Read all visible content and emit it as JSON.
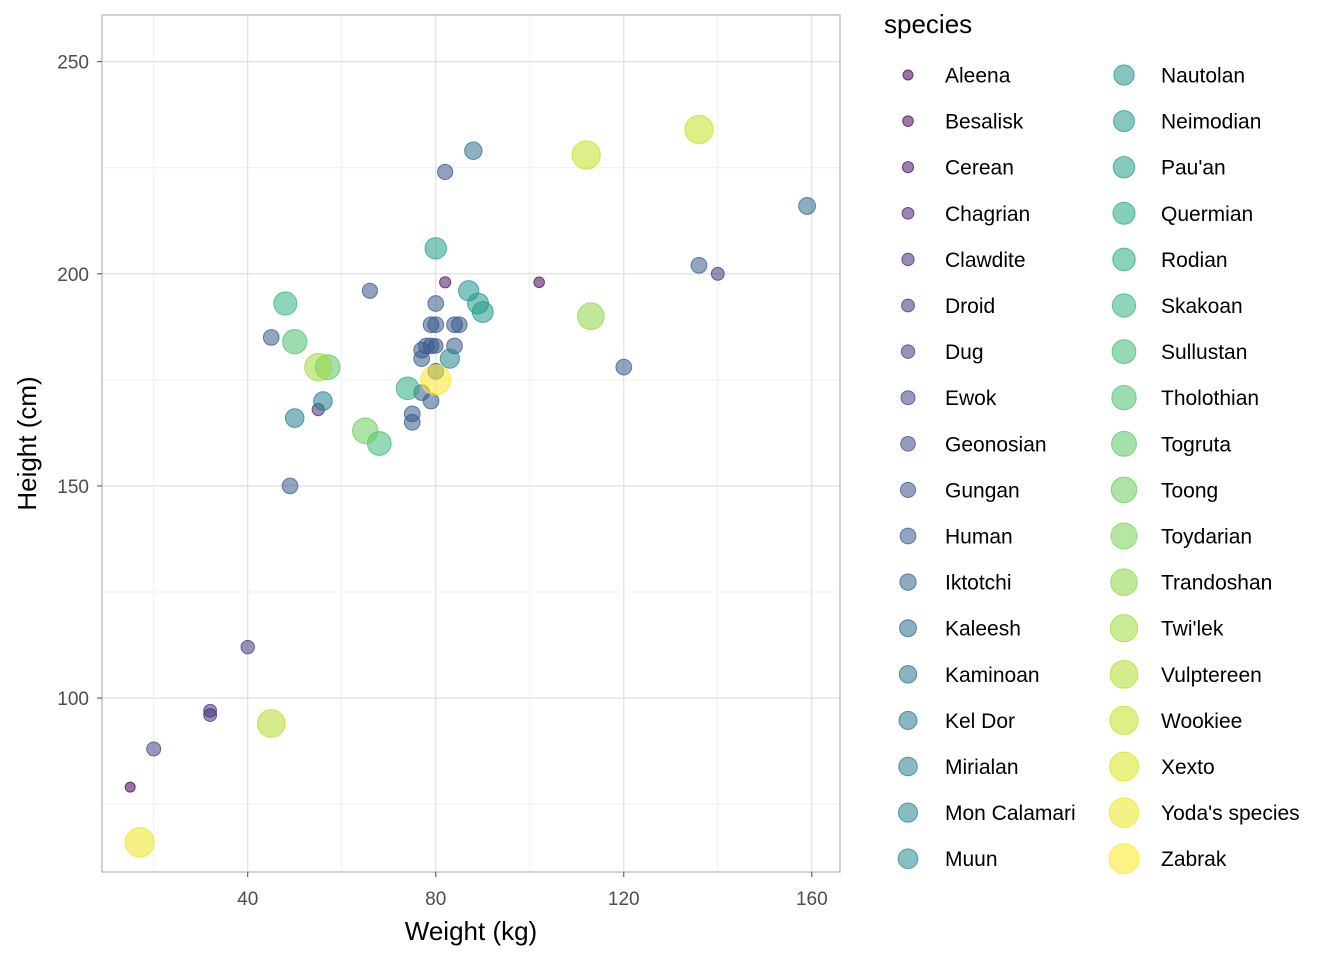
{
  "chart_data": {
    "type": "scatter",
    "title": "",
    "xlabel": "Weight (kg)",
    "ylabel": "Height (cm)",
    "xlim": [
      9,
      166
    ],
    "ylim": [
      59,
      261
    ],
    "x_ticks": [
      40,
      80,
      120,
      160
    ],
    "y_ticks": [
      100,
      150,
      200,
      250
    ],
    "x_minor": [
      20,
      60,
      100,
      140
    ],
    "y_minor": [
      75,
      125,
      175,
      225
    ],
    "grid": true,
    "legend": {
      "title": "species",
      "placement": "right",
      "columns": 2
    },
    "size_range": [
      5,
      15
    ],
    "point_opacity": 0.55,
    "palette": [
      "#440154",
      "#481a6c",
      "#472f7d",
      "#414487",
      "#39568c",
      "#31688e",
      "#2a788e",
      "#23888e",
      "#1f988b",
      "#22a884",
      "#35b779",
      "#54c568",
      "#7ad151",
      "#a5db36",
      "#d2e21b",
      "#fde725"
    ],
    "species": [
      "Aleena",
      "Besalisk",
      "Cerean",
      "Chagrian",
      "Clawdite",
      "Droid",
      "Dug",
      "Ewok",
      "Geonosian",
      "Gungan",
      "Human",
      "Iktotchi",
      "Kaleesh",
      "Kaminoan",
      "Kel Dor",
      "Mirialan",
      "Mon Calamari",
      "Muun",
      "Nautolan",
      "Neimodian",
      "Pau'an",
      "Quermian",
      "Rodian",
      "Skakoan",
      "Sullustan",
      "Tholothian",
      "Togruta",
      "Toong",
      "Toydarian",
      "Trandoshan",
      "Twi'lek",
      "Vulptereen",
      "Wookiee",
      "Xexto",
      "Yoda's species",
      "Zabrak"
    ],
    "points": [
      {
        "x": 15,
        "y": 79,
        "species": "Aleena"
      },
      {
        "x": 102,
        "y": 198,
        "species": "Besalisk"
      },
      {
        "x": 82,
        "y": 198,
        "species": "Cerean"
      },
      {
        "x": 55,
        "y": 168,
        "species": "Clawdite"
      },
      {
        "x": 140,
        "y": 200,
        "species": "Droid"
      },
      {
        "x": 32,
        "y": 97,
        "species": "Droid"
      },
      {
        "x": 32,
        "y": 96,
        "species": "Droid"
      },
      {
        "x": 40,
        "y": 112,
        "species": "Dug"
      },
      {
        "x": 20,
        "y": 88,
        "species": "Ewok"
      },
      {
        "x": 80,
        "y": 183,
        "species": "Geonosian"
      },
      {
        "x": 66,
        "y": 196,
        "species": "Gungan"
      },
      {
        "x": 82,
        "y": 224,
        "species": "Gungan"
      },
      {
        "x": 77,
        "y": 172,
        "species": "Human"
      },
      {
        "x": 136,
        "y": 202,
        "species": "Human"
      },
      {
        "x": 49,
        "y": 150,
        "species": "Human"
      },
      {
        "x": 120,
        "y": 178,
        "species": "Human"
      },
      {
        "x": 75,
        "y": 165,
        "species": "Human"
      },
      {
        "x": 84,
        "y": 183,
        "species": "Human"
      },
      {
        "x": 77,
        "y": 182,
        "species": "Human"
      },
      {
        "x": 84,
        "y": 188,
        "species": "Human"
      },
      {
        "x": 80,
        "y": 193,
        "species": "Human"
      },
      {
        "x": 79,
        "y": 170,
        "species": "Human"
      },
      {
        "x": 79,
        "y": 183,
        "species": "Human"
      },
      {
        "x": 85,
        "y": 188,
        "species": "Human"
      },
      {
        "x": 79,
        "y": 188,
        "species": "Human"
      },
      {
        "x": 78,
        "y": 183,
        "species": "Human"
      },
      {
        "x": 45,
        "y": 185,
        "species": "Human"
      },
      {
        "x": 75,
        "y": 167,
        "species": "Human"
      },
      {
        "x": 80,
        "y": 188,
        "species": "Human"
      },
      {
        "x": 80,
        "y": 177,
        "species": "Human"
      },
      {
        "x": 77,
        "y": 180,
        "species": "Human"
      },
      {
        "x": 159,
        "y": 216,
        "species": "Kaleesh"
      },
      {
        "x": 88,
        "y": 229,
        "species": "Kaminoan"
      },
      {
        "x": 56,
        "y": 170,
        "species": "Mirialan"
      },
      {
        "x": 50,
        "y": 166,
        "species": "Mirialan"
      },
      {
        "x": 83,
        "y": 180,
        "species": "Mon Calamari"
      },
      {
        "x": 87,
        "y": 196,
        "species": "Nautolan"
      },
      {
        "x": 90,
        "y": 191,
        "species": "Neimodian"
      },
      {
        "x": 89,
        "y": 193,
        "species": "Neimodian"
      },
      {
        "x": 80,
        "y": 206,
        "species": "Pau'an"
      },
      {
        "x": 74,
        "y": 173,
        "species": "Rodian"
      },
      {
        "x": 48,
        "y": 193,
        "species": "Skakoan"
      },
      {
        "x": 68,
        "y": 160,
        "species": "Sullustan"
      },
      {
        "x": 50,
        "y": 184,
        "species": "Tholothian"
      },
      {
        "x": 57,
        "y": 178,
        "species": "Togruta"
      },
      {
        "x": 65,
        "y": 163,
        "species": "Toong"
      },
      {
        "x": 113,
        "y": 190,
        "species": "Trandoshan"
      },
      {
        "x": 55,
        "y": 178,
        "species": "Twi'lek"
      },
      {
        "x": 45,
        "y": 94,
        "species": "Vulptereen"
      },
      {
        "x": 112,
        "y": 228,
        "species": "Wookiee"
      },
      {
        "x": 136,
        "y": 234,
        "species": "Wookiee"
      },
      {
        "x": 17,
        "y": 66,
        "species": "Yoda's species"
      },
      {
        "x": 80,
        "y": 175,
        "species": "Zabrak"
      }
    ]
  }
}
